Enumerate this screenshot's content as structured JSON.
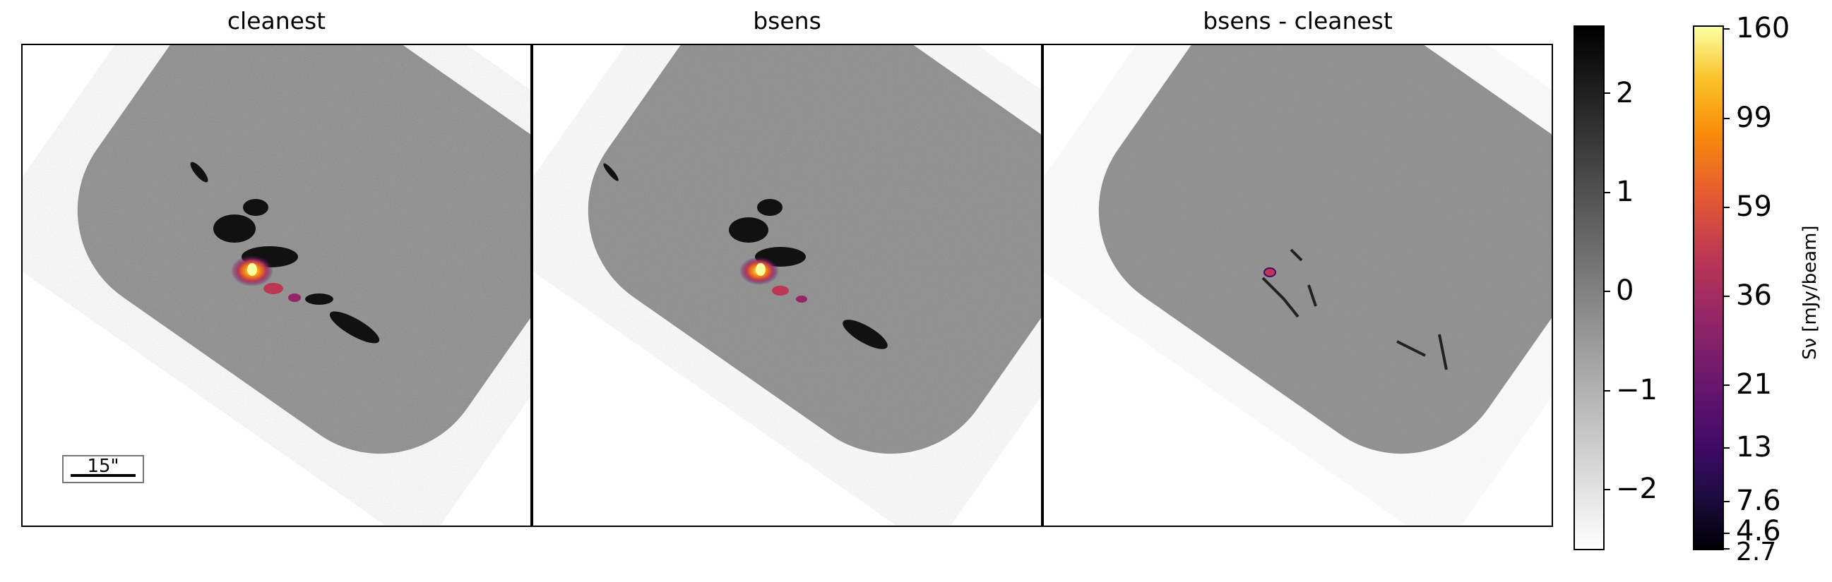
{
  "panels": [
    {
      "title": "cleanest"
    },
    {
      "title": "bsens"
    },
    {
      "title": "bsens - cleanest"
    }
  ],
  "scalebar": {
    "label": "15\""
  },
  "gray_colorbar": {
    "ticks": [
      "2",
      "1",
      "0",
      "−1",
      "−2"
    ],
    "colors": {
      "top": "#000000",
      "bottom": "#ffffff"
    }
  },
  "color_colorbar": {
    "label": "Sν [mJy/beam]",
    "ticks": [
      "160",
      "99",
      "59",
      "36",
      "21",
      "13",
      "7.6",
      "4.6",
      "2.7"
    ],
    "colormap": "inferno"
  },
  "colors": {
    "map_gray": "#8a8a8a",
    "frame": "#000000"
  }
}
